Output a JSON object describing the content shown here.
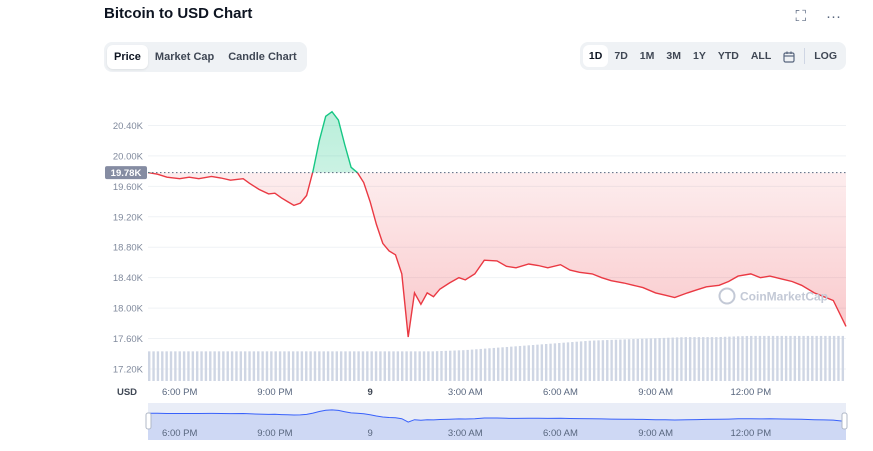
{
  "header": {
    "title": "Bitcoin to USD Chart",
    "fullscreen_icon": "⛶",
    "more_icon": "···"
  },
  "tabs": [
    {
      "label": "Price",
      "active": true
    },
    {
      "label": "Market Cap",
      "active": false
    },
    {
      "label": "Candle Chart",
      "active": false
    }
  ],
  "ranges": [
    {
      "label": "1D",
      "active": true
    },
    {
      "label": "7D",
      "active": false
    },
    {
      "label": "1M",
      "active": false
    },
    {
      "label": "3M",
      "active": false
    },
    {
      "label": "1Y",
      "active": false
    },
    {
      "label": "YTD",
      "active": false
    },
    {
      "label": "ALL",
      "active": false
    }
  ],
  "calendar_icon": "calendar-icon",
  "log_label": "LOG",
  "colors": {
    "up": "#16c784",
    "down": "#ea3943",
    "volume": "#cfd6e4",
    "navigator_line": "#3861fb",
    "grid": "#eff2f5"
  },
  "chart_data": {
    "type": "line",
    "title": "Bitcoin to USD Chart",
    "ylabel": "",
    "xlabel": "",
    "currency_label": "USD",
    "watermark": "CoinMarketCap",
    "reference_label": "19.78K",
    "reference_value": 19780,
    "ylim": [
      17200,
      20800
    ],
    "y_ticks": [
      "20.40K",
      "20.00K",
      "19.60K",
      "19.20K",
      "18.80K",
      "18.40K",
      "18.00K",
      "17.60K",
      "17.20K"
    ],
    "y_tick_values": [
      20400,
      20000,
      19600,
      19200,
      18800,
      18400,
      18000,
      17600,
      17200
    ],
    "x_range": [
      17.0,
      39.0
    ],
    "x_ticks": [
      "6:00 PM",
      "9:00 PM",
      "9",
      "3:00 AM",
      "6:00 AM",
      "9:00 AM",
      "12:00 PM"
    ],
    "x_tick_values": [
      18,
      21,
      24,
      27,
      30,
      33,
      36
    ],
    "grid": true,
    "series": [
      {
        "x": [
          17.0,
          17.3,
          17.6,
          18.0,
          18.3,
          18.6,
          19.0,
          19.3,
          19.6,
          20.0,
          20.2,
          20.5,
          20.8,
          21.0,
          21.2,
          21.4,
          21.6,
          21.8,
          22.0,
          22.2,
          22.4,
          22.6,
          22.8,
          23.0,
          23.2,
          23.4,
          23.6,
          23.8,
          24.0,
          24.2,
          24.4,
          24.6,
          24.8,
          25.0,
          25.2,
          25.4,
          25.6,
          25.8,
          26.0,
          26.2,
          26.5,
          26.8,
          27.0,
          27.3,
          27.6,
          28.0,
          28.3,
          28.6,
          29.0,
          29.3,
          29.6,
          30.0,
          30.3,
          30.6,
          31.0,
          31.3,
          31.6,
          32.0,
          32.3,
          32.6,
          33.0,
          33.3,
          33.6,
          34.0,
          34.3,
          34.6,
          35.0,
          35.3,
          35.6,
          36.0,
          36.3,
          36.6,
          37.0,
          37.3,
          37.6,
          38.0,
          38.3,
          38.6,
          39.0
        ],
        "values": [
          19780,
          19760,
          19720,
          19700,
          19720,
          19700,
          19730,
          19710,
          19680,
          19700,
          19640,
          19560,
          19500,
          19510,
          19450,
          19400,
          19350,
          19380,
          19480,
          19800,
          20200,
          20520,
          20580,
          20470,
          20150,
          19850,
          19780,
          19650,
          19400,
          19100,
          18850,
          18750,
          18700,
          18450,
          17620,
          18200,
          18050,
          18200,
          18150,
          18250,
          18330,
          18400,
          18370,
          18450,
          18630,
          18620,
          18550,
          18530,
          18580,
          18560,
          18530,
          18570,
          18500,
          18470,
          18450,
          18400,
          18360,
          18330,
          18300,
          18270,
          18200,
          18170,
          18140,
          18200,
          18240,
          18280,
          18300,
          18350,
          18420,
          18450,
          18400,
          18420,
          18380,
          18350,
          18300,
          18200,
          18150,
          18100,
          17760
        ]
      }
    ],
    "volume_level": [
      0.25,
      0.25,
      0.25,
      0.25,
      0.25,
      0.25,
      0.25,
      0.25,
      0.25,
      0.25,
      0.26,
      0.28,
      0.3,
      0.32,
      0.34,
      0.35,
      0.36,
      0.37,
      0.37,
      0.38,
      0.38,
      0.38,
      0.38
    ]
  },
  "navigator": {
    "x_ticks": [
      "6:00 PM",
      "9:00 PM",
      "9",
      "3:00 AM",
      "6:00 AM",
      "9:00 AM",
      "12:00 PM"
    ]
  }
}
